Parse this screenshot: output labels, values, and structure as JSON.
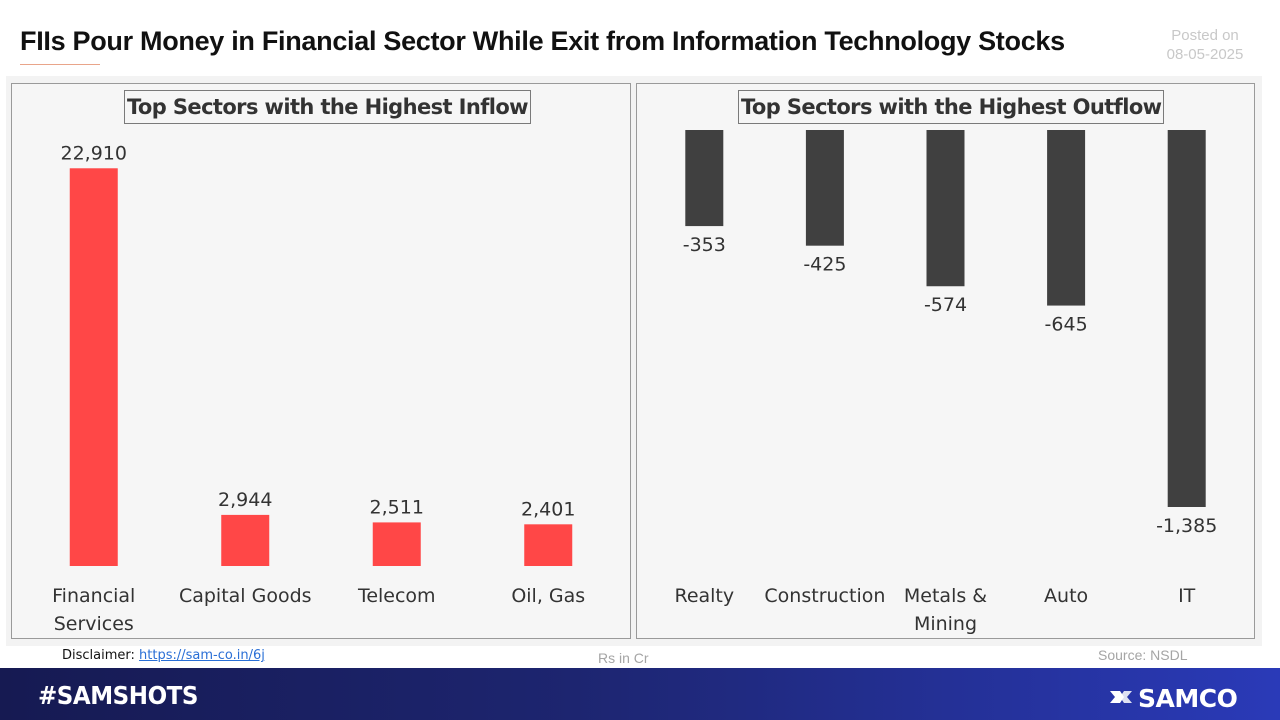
{
  "header": {
    "title": "FIIs Pour Money in Financial Sector While Exit from Information Technology Stocks",
    "posted_label": "Posted on",
    "posted_date": "08-05-2025"
  },
  "chart_data": [
    {
      "type": "bar",
      "title": "Top Sectors with the Highest Inflow",
      "categories": [
        [
          "Financial",
          "Services"
        ],
        [
          "Capital Goods"
        ],
        [
          "Telecom"
        ],
        [
          "Oil, Gas"
        ]
      ],
      "values": [
        22910,
        2944,
        2511,
        2401
      ],
      "value_labels": [
        "22,910",
        "2,944",
        "2,511",
        "2,401"
      ],
      "ylim": [
        0,
        25000
      ],
      "color": "#ff4747",
      "grid": false,
      "legend": "none"
    },
    {
      "type": "bar",
      "title": "Top Sectors with the Highest Outflow",
      "categories": [
        [
          "Realty"
        ],
        [
          "Construction"
        ],
        [
          "Metals &",
          "Mining"
        ],
        [
          "Auto"
        ],
        [
          "IT"
        ]
      ],
      "values": [
        -353,
        -425,
        -574,
        -645,
        -1385
      ],
      "value_labels": [
        "-353",
        "-425",
        "-574",
        "-645",
        "-1,385"
      ],
      "ylim": [
        -1385,
        0
      ],
      "color": "#404040",
      "grid": false,
      "legend": "none"
    }
  ],
  "footer": {
    "disclaimer_label": "Disclaimer:",
    "disclaimer_link": "https://sam-co.in/6j",
    "units": "Rs in Cr",
    "source": "Source: NSDL",
    "hashtag": "#SAMSHOTS",
    "brand": "SAMCO"
  },
  "colors": {
    "inflow": "#ff4747",
    "outflow": "#404040",
    "banner": "#1d2570",
    "accent_line": "#e9a58a"
  },
  "icons": {
    "brand_logo": "samco-logo-icon"
  }
}
